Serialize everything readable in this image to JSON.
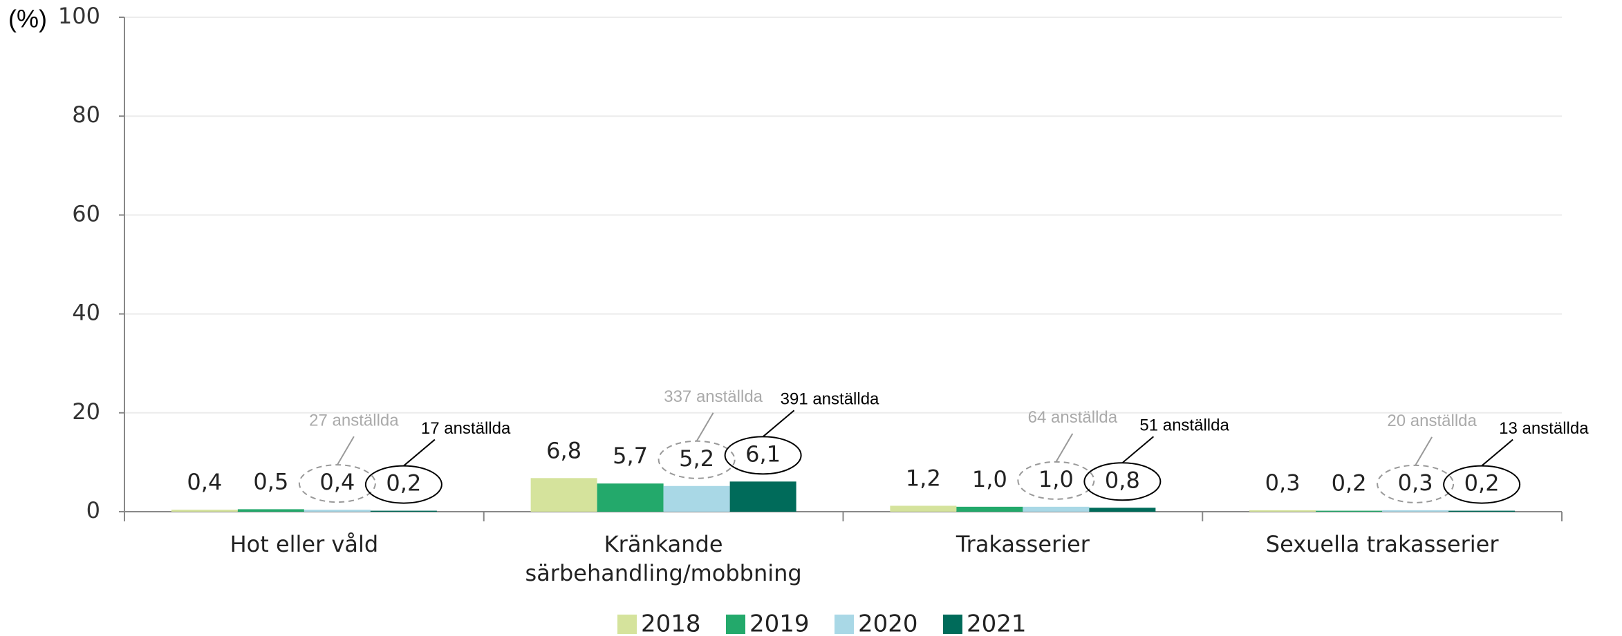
{
  "chart_data": {
    "type": "bar",
    "y_label": "(%)",
    "categories": [
      "Hot eller våld",
      "Kränkande särbehandling/mobbning",
      "Trakasserier",
      "Sexuella trakasserier"
    ],
    "series": [
      {
        "name": "2018",
        "color": "#d5e39c",
        "values": [
          0.4,
          6.8,
          1.2,
          0.3
        ],
        "value_labels": [
          "0,4",
          "6,8",
          "1,2",
          "0,3"
        ]
      },
      {
        "name": "2019",
        "color": "#23a96b",
        "values": [
          0.5,
          5.7,
          1.0,
          0.2
        ],
        "value_labels": [
          "0,5",
          "5,7",
          "1,0",
          "0,2"
        ]
      },
      {
        "name": "2020",
        "color": "#a9d8e6",
        "values": [
          0.4,
          5.2,
          1.0,
          0.3
        ],
        "value_labels": [
          "0,4",
          "5,2",
          "1,0",
          "0,3"
        ],
        "annotations": [
          "27 anställda",
          "337 anställda",
          "64 anställda",
          "20 anställda"
        ]
      },
      {
        "name": "2021",
        "color": "#006b5a",
        "values": [
          0.2,
          6.1,
          0.8,
          0.2
        ],
        "value_labels": [
          "0,2",
          "6,1",
          "0,8",
          "0,2"
        ],
        "annotations": [
          "17 anställda",
          "391 anställda",
          "51 anställda",
          "13 anställda"
        ]
      }
    ],
    "ylim": [
      0,
      100
    ],
    "yticks": [
      0,
      20,
      40,
      60,
      80,
      100
    ],
    "grid": true
  }
}
